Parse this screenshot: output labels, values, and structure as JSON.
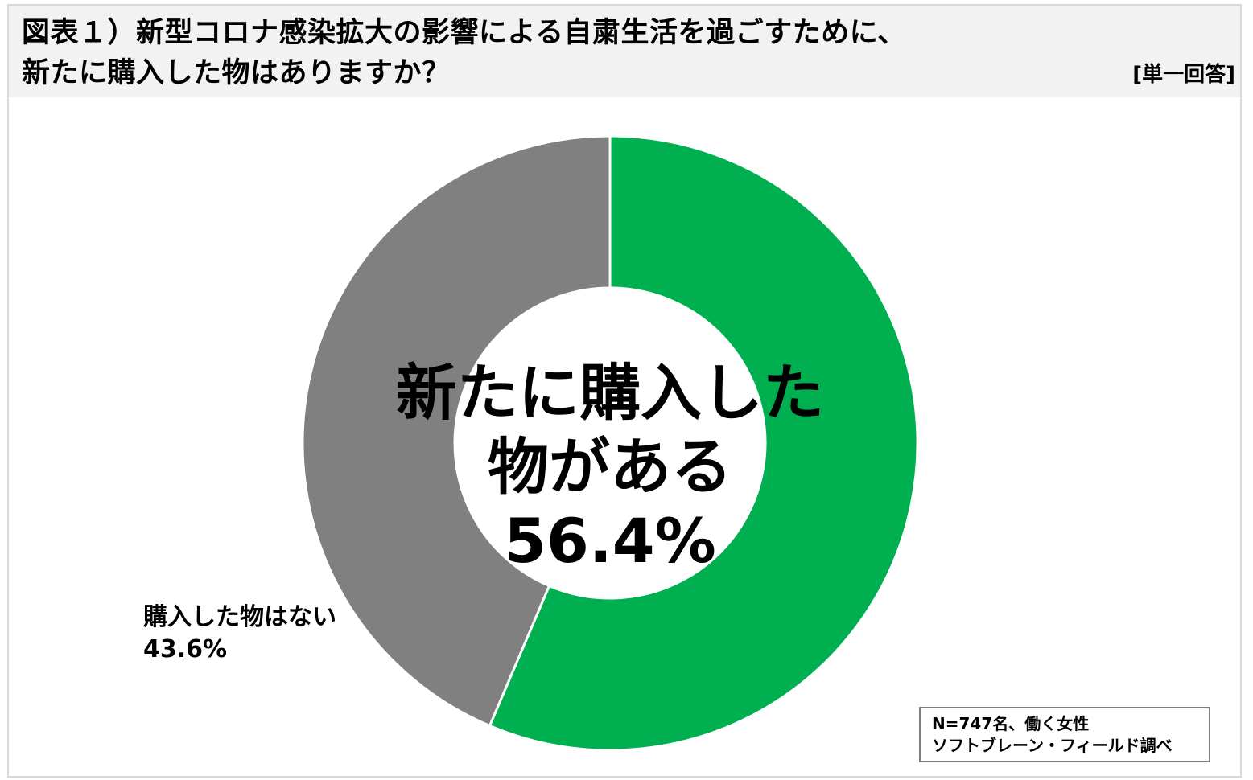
{
  "title": {
    "line1": "図表１）新型コロナ感染拡大の影響による自粛生活を過ごすために、",
    "line2": "新たに購入した物はありますか？",
    "answer_type": "[単一回答]"
  },
  "chart_data": {
    "type": "pie",
    "donut": true,
    "categories": [
      "新たに購入した物がある",
      "購入した物はない"
    ],
    "values": [
      56.4,
      43.6
    ],
    "unit": "%",
    "colors": [
      "#00b050",
      "#808080"
    ],
    "center_label": {
      "line1": "新たに購入した",
      "line2": "物がある",
      "line3": "56.4%"
    },
    "side_label": {
      "line1": "購入した物はない",
      "line2": "43.6%"
    }
  },
  "note": {
    "line1": "N=747名、働く女性",
    "line2": "ソフトブレーン・フィールド調べ"
  }
}
